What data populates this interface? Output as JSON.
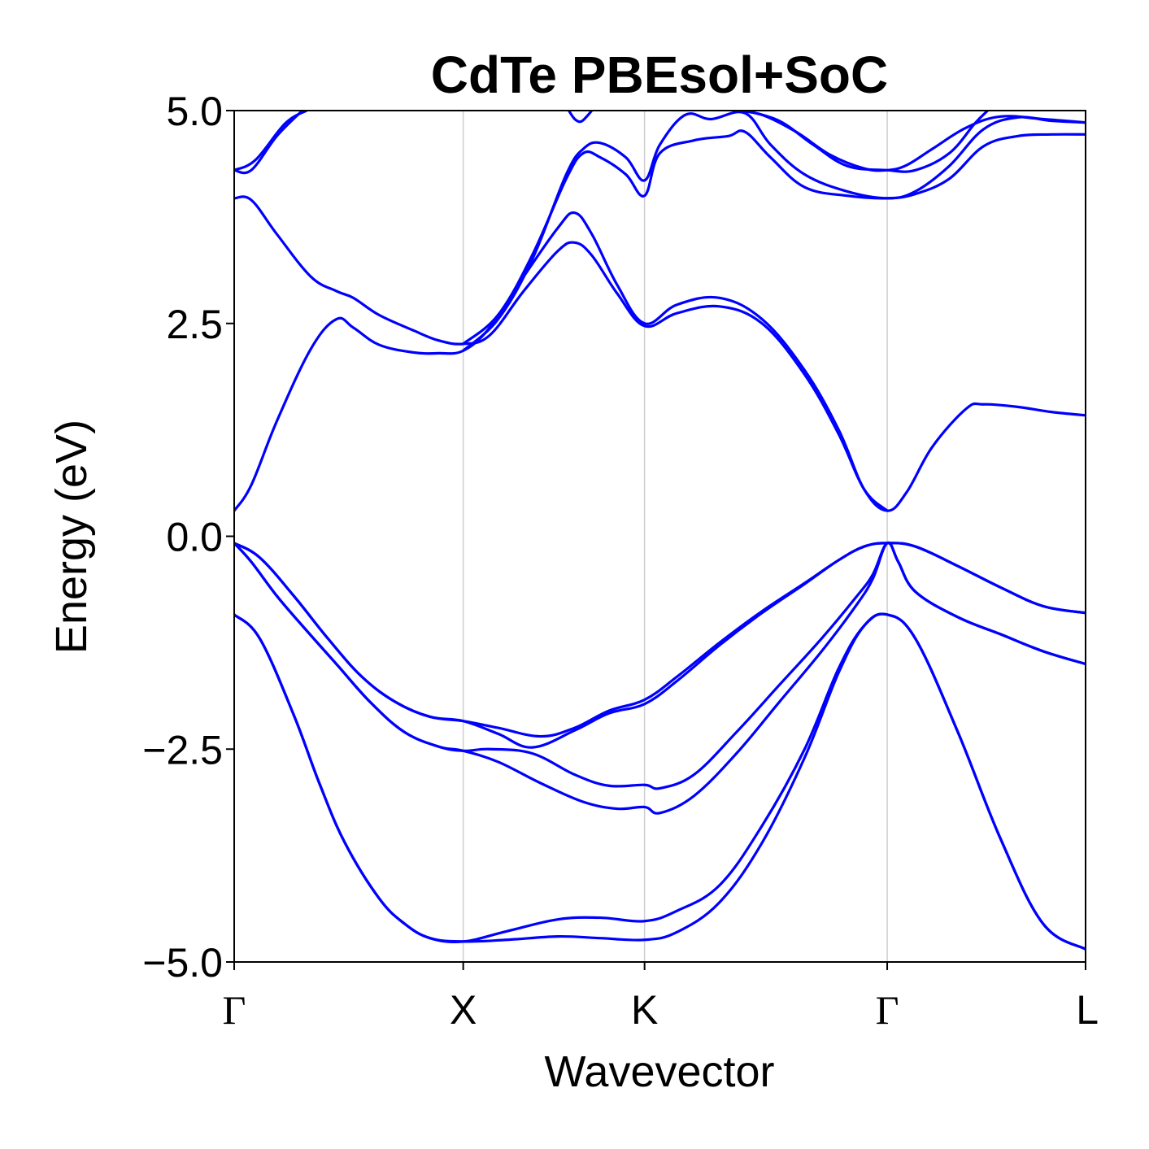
{
  "chart_data": {
    "type": "line",
    "title": "CdTe PBEsol+SoC",
    "xlabel": "Wavevector",
    "ylabel": "Energy (eV)",
    "ylim": [
      -5.0,
      5.0
    ],
    "xlim": [
      0,
      1
    ],
    "grid": "vertical lines at high-symmetry k-points",
    "line_color": "#0000ff",
    "kpoints": [
      {
        "label": "Γ",
        "x": 0.0,
        "serif": true
      },
      {
        "label": "X",
        "x": 0.269,
        "serif": false
      },
      {
        "label": "K",
        "x": 0.482,
        "serif": false
      },
      {
        "label": "Γ",
        "x": 0.767,
        "serif": true
      },
      {
        "label": "L",
        "x": 1.0,
        "serif": false
      }
    ],
    "yticks": [
      {
        "label": "−5.0",
        "value": -5.0
      },
      {
        "label": "−2.5",
        "value": -2.5
      },
      {
        "label": "0.0",
        "value": 0.0
      },
      {
        "label": "2.5",
        "value": 2.5
      },
      {
        "label": "5.0",
        "value": 5.0
      }
    ],
    "series": [
      {
        "x": [
          0,
          0.03,
          0.07,
          0.1,
          0.13,
          0.17,
          0.2,
          0.23,
          0.269,
          0.32,
          0.38,
          0.43,
          0.482,
          0.52,
          0.57,
          0.62,
          0.67,
          0.71,
          0.74,
          0.767,
          0.8,
          0.85,
          0.9,
          0.95,
          1.0
        ],
        "y": [
          -0.92,
          -1.2,
          -2.1,
          -2.9,
          -3.6,
          -4.25,
          -4.55,
          -4.72,
          -4.76,
          -4.74,
          -4.7,
          -4.72,
          -4.74,
          -4.65,
          -4.3,
          -3.6,
          -2.6,
          -1.6,
          -1.05,
          -0.92,
          -1.2,
          -2.3,
          -3.55,
          -4.55,
          -4.85
        ]
      },
      {
        "x": [
          0,
          0.03,
          0.07,
          0.1,
          0.13,
          0.17,
          0.2,
          0.23,
          0.269,
          0.32,
          0.38,
          0.43,
          0.482,
          0.52,
          0.57,
          0.62,
          0.67,
          0.71,
          0.74,
          0.767,
          0.8,
          0.85,
          0.9,
          0.95,
          1.0
        ],
        "y": [
          -0.92,
          -1.2,
          -2.1,
          -2.9,
          -3.6,
          -4.25,
          -4.55,
          -4.72,
          -4.76,
          -4.64,
          -4.5,
          -4.48,
          -4.52,
          -4.4,
          -4.1,
          -3.4,
          -2.5,
          -1.55,
          -1.05,
          -0.92,
          -1.2,
          -2.3,
          -3.55,
          -4.55,
          -4.85
        ]
      },
      {
        "x": [
          0,
          0.02,
          0.05,
          0.08,
          0.12,
          0.16,
          0.2,
          0.24,
          0.269,
          0.3,
          0.35,
          0.4,
          0.44,
          0.482,
          0.5,
          0.54,
          0.59,
          0.64,
          0.69,
          0.73,
          0.75,
          0.767,
          0.78,
          0.8,
          0.85,
          0.9,
          0.95,
          1.0
        ],
        "y": [
          -0.08,
          -0.3,
          -0.7,
          -1.05,
          -1.5,
          -1.95,
          -2.3,
          -2.47,
          -2.52,
          -2.5,
          -2.55,
          -2.8,
          -2.93,
          -2.92,
          -2.96,
          -2.8,
          -2.3,
          -1.75,
          -1.2,
          -0.72,
          -0.45,
          -0.08,
          -0.3,
          -0.65,
          -0.95,
          -1.15,
          -1.35,
          -1.5
        ]
      },
      {
        "x": [
          0,
          0.02,
          0.05,
          0.08,
          0.12,
          0.16,
          0.2,
          0.24,
          0.269,
          0.31,
          0.36,
          0.41,
          0.45,
          0.482,
          0.5,
          0.54,
          0.59,
          0.64,
          0.69,
          0.73,
          0.75,
          0.767,
          0.78,
          0.8,
          0.85,
          0.9,
          0.95,
          1.0
        ],
        "y": [
          -0.08,
          -0.3,
          -0.7,
          -1.05,
          -1.5,
          -1.95,
          -2.3,
          -2.47,
          -2.52,
          -2.65,
          -2.9,
          -3.12,
          -3.2,
          -3.18,
          -3.25,
          -3.05,
          -2.55,
          -1.95,
          -1.35,
          -0.82,
          -0.5,
          -0.08,
          -0.3,
          -0.65,
          -0.95,
          -1.15,
          -1.35,
          -1.5
        ]
      },
      {
        "x": [
          0,
          0.03,
          0.07,
          0.11,
          0.15,
          0.19,
          0.23,
          0.269,
          0.31,
          0.36,
          0.4,
          0.44,
          0.482,
          0.52,
          0.57,
          0.62,
          0.67,
          0.71,
          0.74,
          0.767,
          0.8,
          0.85,
          0.9,
          0.95,
          1.0
        ],
        "y": [
          -0.08,
          -0.25,
          -0.7,
          -1.2,
          -1.65,
          -1.95,
          -2.12,
          -2.17,
          -2.25,
          -2.35,
          -2.25,
          -2.05,
          -1.92,
          -1.65,
          -1.25,
          -0.88,
          -0.55,
          -0.28,
          -0.12,
          -0.08,
          -0.12,
          -0.35,
          -0.6,
          -0.82,
          -0.9
        ]
      },
      {
        "x": [
          0,
          0.03,
          0.07,
          0.11,
          0.15,
          0.19,
          0.23,
          0.269,
          0.31,
          0.35,
          0.4,
          0.44,
          0.482,
          0.52,
          0.57,
          0.62,
          0.67,
          0.71,
          0.74,
          0.767,
          0.8,
          0.85,
          0.9,
          0.95,
          1.0
        ],
        "y": [
          -0.08,
          -0.25,
          -0.7,
          -1.2,
          -1.65,
          -1.95,
          -2.12,
          -2.17,
          -2.32,
          -2.48,
          -2.28,
          -2.08,
          -1.97,
          -1.7,
          -1.28,
          -0.9,
          -0.56,
          -0.28,
          -0.12,
          -0.08,
          -0.12,
          -0.35,
          -0.6,
          -0.82,
          -0.9
        ]
      },
      {
        "x": [
          0,
          0.02,
          0.05,
          0.09,
          0.12,
          0.14,
          0.17,
          0.21,
          0.24,
          0.269,
          0.3,
          0.34,
          0.38,
          0.4,
          0.42,
          0.45,
          0.482,
          0.52,
          0.57,
          0.62,
          0.67,
          0.71,
          0.74,
          0.767,
          0.79,
          0.82,
          0.86,
          0.88,
          0.92,
          0.96,
          1.0
        ],
        "y": [
          0.3,
          0.6,
          1.35,
          2.2,
          2.55,
          2.45,
          2.25,
          2.16,
          2.15,
          2.18,
          2.45,
          3.05,
          3.62,
          3.8,
          3.55,
          2.95,
          2.5,
          2.72,
          2.8,
          2.55,
          1.95,
          1.25,
          0.55,
          0.3,
          0.52,
          1.05,
          1.5,
          1.55,
          1.52,
          1.46,
          1.42
        ]
      },
      {
        "x": [
          0,
          0.02,
          0.05,
          0.09,
          0.12,
          0.14,
          0.17,
          0.21,
          0.24,
          0.269,
          0.3,
          0.34,
          0.38,
          0.4,
          0.42,
          0.45,
          0.482,
          0.52,
          0.57,
          0.62,
          0.67,
          0.71,
          0.74,
          0.767
        ],
        "y": [
          3.97,
          3.95,
          3.55,
          3.05,
          2.88,
          2.8,
          2.6,
          2.42,
          2.3,
          2.26,
          2.36,
          2.88,
          3.35,
          3.45,
          3.3,
          2.85,
          2.47,
          2.62,
          2.7,
          2.5,
          1.9,
          1.2,
          0.55,
          0.3
        ]
      },
      {
        "x": [
          0,
          0.02,
          0.05,
          0.08
        ],
        "y": [
          4.3,
          4.3,
          4.7,
          5.0
        ]
      },
      {
        "x": [
          0,
          0.025,
          0.06,
          0.085
        ],
        "y": [
          4.3,
          4.42,
          4.85,
          5.0
        ]
      },
      {
        "x": [
          0.269,
          0.31,
          0.35,
          0.39,
          0.41,
          0.43,
          0.46,
          0.482,
          0.5,
          0.54,
          0.58,
          0.6,
          0.63,
          0.67,
          0.72,
          0.767,
          0.8,
          0.84,
          0.88,
          0.92,
          0.96,
          1.0
        ],
        "y": [
          2.26,
          2.6,
          3.3,
          4.2,
          4.5,
          4.45,
          4.25,
          4.0,
          4.5,
          4.65,
          4.7,
          4.75,
          4.45,
          4.1,
          4.0,
          3.97,
          4.02,
          4.2,
          4.58,
          4.7,
          4.72,
          4.72
        ]
      },
      {
        "x": [
          0.269,
          0.31,
          0.35,
          0.39,
          0.41,
          0.43,
          0.46,
          0.482,
          0.5,
          0.53,
          0.56,
          0.6,
          0.63,
          0.67,
          0.72,
          0.767,
          0.8,
          0.84,
          0.88,
          0.92,
          0.96,
          1.0
        ],
        "y": [
          2.18,
          2.55,
          3.25,
          4.25,
          4.55,
          4.62,
          4.45,
          4.18,
          4.6,
          4.95,
          4.9,
          4.97,
          4.6,
          4.25,
          4.05,
          3.97,
          4.05,
          4.35,
          4.78,
          4.92,
          4.88,
          4.86
        ]
      },
      {
        "x": [
          0.393,
          0.4,
          0.407,
          0.414,
          0.42
        ],
        "y": [
          5.0,
          4.9,
          4.87,
          4.93,
          5.0
        ]
      },
      {
        "x": [
          0.59,
          0.62,
          0.66,
          0.7,
          0.74,
          0.767,
          0.79,
          0.82,
          0.86,
          0.9,
          0.95,
          1.0
        ],
        "y": [
          5.0,
          4.95,
          4.75,
          4.48,
          4.32,
          4.3,
          4.36,
          4.55,
          4.8,
          4.93,
          4.9,
          4.86
        ]
      },
      {
        "x": [
          0.6,
          0.64,
          0.68,
          0.72,
          0.767,
          0.8,
          0.84,
          0.87,
          0.885
        ],
        "y": [
          5.0,
          4.88,
          4.6,
          4.35,
          4.3,
          4.3,
          4.5,
          4.85,
          5.0
        ]
      }
    ]
  }
}
